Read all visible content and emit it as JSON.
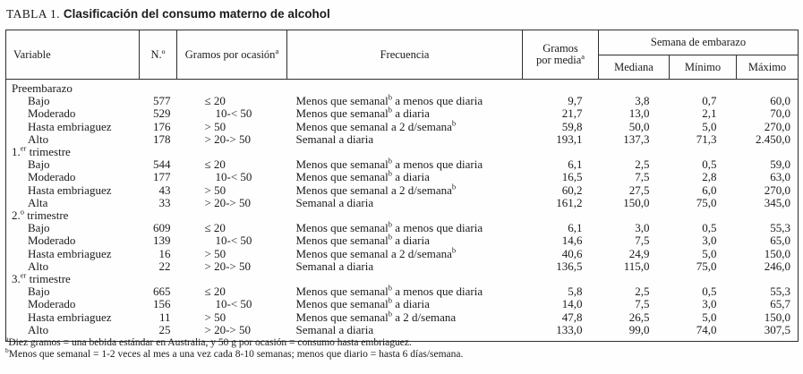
{
  "title": {
    "label": "TABLA 1.",
    "heading": "Clasificación del consumo materno de alcohol"
  },
  "table": {
    "headers": {
      "variable": "Variable",
      "n": "N.º",
      "grams_per_occasion": {
        "pre": "Gramos por ocasión",
        "sup": "a"
      },
      "frequency": "Frecuencia",
      "grams_mean_line1": "Gramos",
      "grams_mean_line2": {
        "pre": "por media",
        "sup": "a"
      },
      "week_group": "Semana de embarazo",
      "median": "Mediana",
      "min": "Mínimo",
      "max": "Máximo"
    },
    "groups": [
      {
        "label": {
          "pre": "Preembarazo",
          "sup": "",
          "post": ""
        },
        "rows": [
          {
            "variable": "Bajo",
            "n": "577",
            "occasion": "≤ 20",
            "freq": {
              "pre": "Menos que semanal",
              "sup": "b",
              "post": " a menos que diaria"
            },
            "grams": "9,7",
            "median": "3,8",
            "min": "0,7",
            "max": "60,0"
          },
          {
            "variable": "Moderado",
            "n": "529",
            "occasion": "10-< 50",
            "freq": {
              "pre": "Menos que semanal",
              "sup": "b",
              "post": " a diaria"
            },
            "grams": "21,7",
            "median": "13,0",
            "min": "2,1",
            "max": "70,0"
          },
          {
            "variable": "Hasta embriaguez",
            "n": "176",
            "occasion": "> 50",
            "freq": {
              "pre": "Menos que semanal a 2 d/semana",
              "sup": "b",
              "post": ""
            },
            "grams": "59,8",
            "median": "50,0",
            "min": "5,0",
            "max": "270,0"
          },
          {
            "variable": "Alto",
            "n": "178",
            "occasion": "> 20-> 50",
            "freq": {
              "pre": "Semanal a diaria",
              "sup": "",
              "post": ""
            },
            "grams": "193,1",
            "median": "137,3",
            "min": "71,3",
            "max": "2.450,0"
          }
        ]
      },
      {
        "label": {
          "pre": "1.",
          "sup": "er",
          "post": " trimestre"
        },
        "rows": [
          {
            "variable": "Bajo",
            "n": "544",
            "occasion": "≤ 20",
            "freq": {
              "pre": "Menos que semanal",
              "sup": "b",
              "post": " a menos que diaria"
            },
            "grams": "6,1",
            "median": "2,5",
            "min": "0,5",
            "max": "59,0"
          },
          {
            "variable": "Moderado",
            "n": "177",
            "occasion": "10-< 50",
            "freq": {
              "pre": "Menos que semanal",
              "sup": "b",
              "post": " a diaria"
            },
            "grams": "16,5",
            "median": "7,5",
            "min": "2,8",
            "max": "63,0"
          },
          {
            "variable": "Hasta embriaguez",
            "n": "43",
            "occasion": "> 50",
            "freq": {
              "pre": "Menos que semanal a 2 d/semana",
              "sup": "b",
              "post": ""
            },
            "grams": "60,2",
            "median": "27,5",
            "min": "6,0",
            "max": "270,0"
          },
          {
            "variable": "Alta",
            "n": "33",
            "occasion": "> 20-> 50",
            "freq": {
              "pre": "Semanal a diaria",
              "sup": "",
              "post": ""
            },
            "grams": "161,2",
            "median": "150,0",
            "min": "75,0",
            "max": "345,0"
          }
        ]
      },
      {
        "label": {
          "pre": "2.",
          "sup": "o",
          "post": " trimestre"
        },
        "rows": [
          {
            "variable": "Bajo",
            "n": "609",
            "occasion": "≤ 20",
            "freq": {
              "pre": "Menos que semanal",
              "sup": "b",
              "post": " a menos que diaria"
            },
            "grams": "6,1",
            "median": "3,0",
            "min": "0,5",
            "max": "55,3"
          },
          {
            "variable": "Moderado",
            "n": "139",
            "occasion": "10-< 50",
            "freq": {
              "pre": "Menos que semanal",
              "sup": "b",
              "post": " a diaria"
            },
            "grams": "14,6",
            "median": "7,5",
            "min": "3,0",
            "max": "65,0"
          },
          {
            "variable": "Hasta embriaguez",
            "n": "16",
            "occasion": "> 50",
            "freq": {
              "pre": "Menos que semanal a 2 d/semana",
              "sup": "b",
              "post": ""
            },
            "grams": "40,6",
            "median": "24,9",
            "min": "5,0",
            "max": "150,0"
          },
          {
            "variable": "Alto",
            "n": "22",
            "occasion": "> 20-> 50",
            "freq": {
              "pre": "Semanal a diaria",
              "sup": "",
              "post": ""
            },
            "grams": "136,5",
            "median": "115,0",
            "min": "75,0",
            "max": "246,0"
          }
        ]
      },
      {
        "label": {
          "pre": "3.",
          "sup": "er",
          "post": " trimestre"
        },
        "rows": [
          {
            "variable": "Bajo",
            "n": "665",
            "occasion": "≤ 20",
            "freq": {
              "pre": "Menos que semanal",
              "sup": "b",
              "post": " a menos que diaria"
            },
            "grams": "5,8",
            "median": "2,5",
            "min": "0,5",
            "max": "55,3"
          },
          {
            "variable": "Moderado",
            "n": "156",
            "occasion": "10-< 50",
            "freq": {
              "pre": "Menos que semanal",
              "sup": "b",
              "post": " a diaria"
            },
            "grams": "14,0",
            "median": "7,5",
            "min": "3,0",
            "max": "65,7"
          },
          {
            "variable": "Hasta embriaguez",
            "n": "11",
            "occasion": "> 50",
            "freq": {
              "pre": "Menos que semanal",
              "sup": "b",
              "post": " a 2 d/semana"
            },
            "grams": "47,8",
            "median": "26,5",
            "min": "5,0",
            "max": "150,0"
          },
          {
            "variable": "Alto",
            "n": "25",
            "occasion": "> 20-> 50",
            "freq": {
              "pre": "Semanal a diaria",
              "sup": "",
              "post": ""
            },
            "grams": "133,0",
            "median": "99,0",
            "min": "74,0",
            "max": "307,5"
          }
        ]
      }
    ]
  },
  "footnotes": [
    {
      "sup": "a",
      "text": "Diez gramos = una bebida estándar en Australia, y 50 g por ocasión = consumo hasta embriaguez."
    },
    {
      "sup": "b",
      "text": "Menos que semanal = 1-2 veces al mes a una vez cada 8-10 semanas; menos que diario = hasta 6 días/semana."
    }
  ]
}
